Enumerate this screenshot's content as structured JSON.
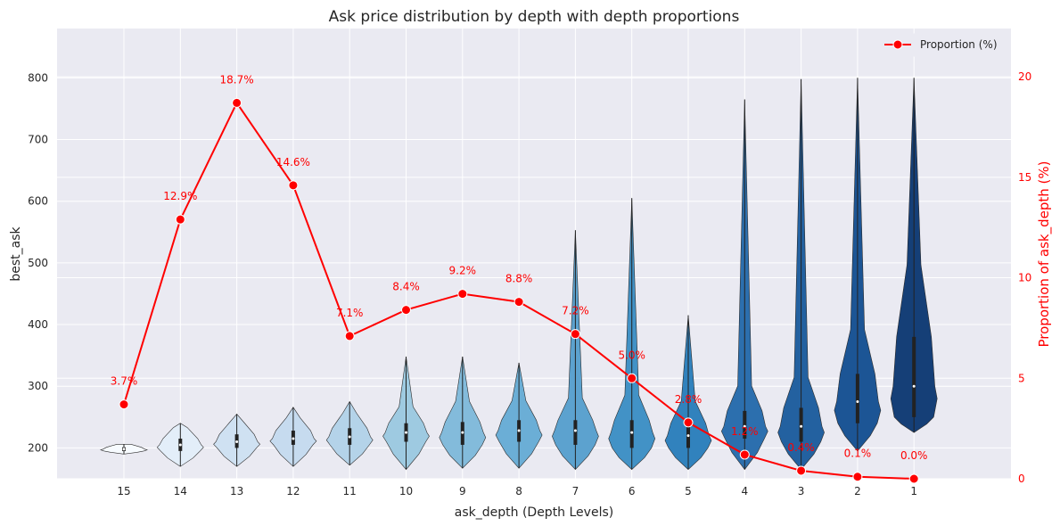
{
  "chart_data": {
    "type": "violin+line",
    "title": "Ask price distribution by depth with depth proportions",
    "xlabel": "ask_depth (Depth Levels)",
    "ylabel": "best_ask",
    "ylabel_right": "Proportion of ask_depth (%)",
    "categories": [
      "15",
      "14",
      "13",
      "12",
      "11",
      "10",
      "9",
      "8",
      "7",
      "6",
      "5",
      "4",
      "3",
      "2",
      "1"
    ],
    "ylim": [
      150,
      880
    ],
    "yticks": [
      200,
      300,
      400,
      500,
      600,
      700,
      800
    ],
    "ylim_right": [
      0,
      22.4
    ],
    "yticks_right": [
      0,
      5,
      10,
      15,
      20
    ],
    "grid": true,
    "legend": {
      "position": "top-right",
      "entries": [
        "Proportion (%)"
      ]
    },
    "violins": [
      {
        "category": "15",
        "min": 190,
        "max": 206,
        "q1": 195,
        "median": 198,
        "q3": 201,
        "color": "#f7fbff"
      },
      {
        "category": "14",
        "min": 170,
        "max": 240,
        "q1": 195,
        "median": 205,
        "q3": 215,
        "color": "#e3eef9"
      },
      {
        "category": "13",
        "min": 170,
        "max": 255,
        "q1": 200,
        "median": 210,
        "q3": 222,
        "color": "#cfe1f2"
      },
      {
        "category": "12",
        "min": 170,
        "max": 266,
        "q1": 205,
        "median": 215,
        "q3": 228,
        "color": "#c6dbef"
      },
      {
        "category": "11",
        "min": 172,
        "max": 275,
        "q1": 205,
        "median": 218,
        "q3": 232,
        "color": "#b4d3e9"
      },
      {
        "category": "10",
        "min": 165,
        "max": 348,
        "q1": 210,
        "median": 225,
        "q3": 240,
        "color": "#9ecae1"
      },
      {
        "category": "9",
        "min": 167,
        "max": 348,
        "q1": 205,
        "median": 225,
        "q3": 242,
        "color": "#83bbdb"
      },
      {
        "category": "8",
        "min": 167,
        "max": 338,
        "q1": 210,
        "median": 228,
        "q3": 245,
        "color": "#6baed6"
      },
      {
        "category": "7",
        "min": 165,
        "max": 553,
        "q1": 205,
        "median": 228,
        "q3": 245,
        "color": "#5ca2cf"
      },
      {
        "category": "6",
        "min": 165,
        "max": 605,
        "q1": 200,
        "median": 225,
        "q3": 245,
        "color": "#4292c6"
      },
      {
        "category": "5",
        "min": 165,
        "max": 415,
        "q1": 200,
        "median": 220,
        "q3": 240,
        "color": "#3182bd"
      },
      {
        "category": "4",
        "min": 165,
        "max": 765,
        "q1": 215,
        "median": 235,
        "q3": 260,
        "color": "#2c6fae"
      },
      {
        "category": "3",
        "min": 165,
        "max": 798,
        "q1": 210,
        "median": 235,
        "q3": 265,
        "color": "#2361a0"
      },
      {
        "category": "2",
        "min": 195,
        "max": 800,
        "q1": 240,
        "median": 275,
        "q3": 320,
        "color": "#1c5595"
      },
      {
        "category": "1",
        "min": 225,
        "max": 800,
        "q1": 250,
        "median": 300,
        "q3": 380,
        "color": "#153f77"
      }
    ],
    "series": [
      {
        "name": "Proportion (%)",
        "color": "#ff0000",
        "x": [
          14,
          13,
          12,
          11,
          10,
          9,
          8,
          7,
          6,
          5,
          4,
          3,
          2,
          1,
          0
        ],
        "values": [
          3.7,
          12.9,
          18.7,
          14.6,
          7.1,
          8.4,
          9.2,
          8.8,
          7.2,
          5.0,
          2.8,
          1.2,
          0.4,
          0.1,
          0.0
        ],
        "labels": [
          "3.7%",
          "12.9%",
          "18.7%",
          "14.6%",
          "7.1%",
          "8.4%",
          "9.2%",
          "8.8%",
          "7.2%",
          "5.0%",
          "2.8%",
          "1.2%",
          "0.4%",
          "0.1%",
          "0.0%"
        ]
      }
    ]
  }
}
